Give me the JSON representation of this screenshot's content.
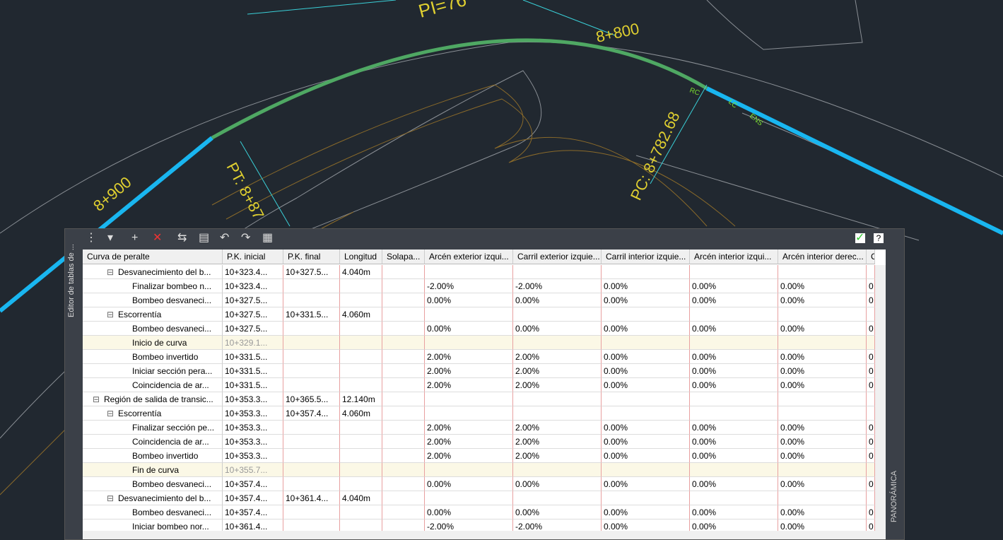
{
  "canvas": {
    "labels": [
      "PI=76",
      "8+800",
      "8+900",
      "PC: 8+782.68",
      "PT: 8+87",
      "ENS",
      "LC",
      "RC"
    ]
  },
  "panel": {
    "side_title": "Editor de tablas de ...",
    "side_label": "PANORÁMICA",
    "columns": [
      "Curva de peralte",
      "P.K. inicial",
      "P.K. final",
      "Longitud",
      "Solapa...",
      "Arcén exterior izqui...",
      "Carril exterior izquie...",
      "Carril interior izquie...",
      "Arcén interior izqui...",
      "Arcén interior derec...",
      "Carr"
    ],
    "rows": [
      {
        "level": 2,
        "label": "Desvanecimiento del b...",
        "start": "10+323.4...",
        "end": "10+327.5...",
        "length": "4.040m",
        "values": []
      },
      {
        "level": 3,
        "label": "Finalizar bombeo n...",
        "start": "10+323.4...",
        "values": [
          "-2.00%",
          "-2.00%",
          "0.00%",
          "0.00%",
          "0.00%",
          "0"
        ]
      },
      {
        "level": 3,
        "label": "Bombeo desvaneci...",
        "start": "10+327.5...",
        "values": [
          "0.00%",
          "0.00%",
          "0.00%",
          "0.00%",
          "0.00%",
          "0"
        ]
      },
      {
        "level": 2,
        "label": "Escorrentía",
        "start": "10+327.5...",
        "end": "10+331.5...",
        "length": "4.060m",
        "values": []
      },
      {
        "level": 3,
        "label": "Bombeo desvaneci...",
        "start": "10+327.5...",
        "values": [
          "0.00%",
          "0.00%",
          "0.00%",
          "0.00%",
          "0.00%",
          "0"
        ]
      },
      {
        "level": 3,
        "label": "Inicio de curva",
        "start": "10+329.1...",
        "values": [],
        "muted": true
      },
      {
        "level": 3,
        "label": "Bombeo invertido",
        "start": "10+331.5...",
        "values": [
          "2.00%",
          "2.00%",
          "0.00%",
          "0.00%",
          "0.00%",
          "0"
        ]
      },
      {
        "level": 3,
        "label": "Iniciar sección pera...",
        "start": "10+331.5...",
        "values": [
          "2.00%",
          "2.00%",
          "0.00%",
          "0.00%",
          "0.00%",
          "0"
        ]
      },
      {
        "level": 3,
        "label": "Coincidencia de ar...",
        "start": "10+331.5...",
        "values": [
          "2.00%",
          "2.00%",
          "0.00%",
          "0.00%",
          "0.00%",
          "0"
        ]
      },
      {
        "level": 1,
        "label": "Región de salida de transic...",
        "start": "10+353.3...",
        "end": "10+365.5...",
        "length": "12.140m",
        "values": []
      },
      {
        "level": 2,
        "label": "Escorrentía",
        "start": "10+353.3...",
        "end": "10+357.4...",
        "length": "4.060m",
        "values": []
      },
      {
        "level": 3,
        "label": "Finalizar sección pe...",
        "start": "10+353.3...",
        "values": [
          "2.00%",
          "2.00%",
          "0.00%",
          "0.00%",
          "0.00%",
          "0"
        ]
      },
      {
        "level": 3,
        "label": "Coincidencia de ar...",
        "start": "10+353.3...",
        "values": [
          "2.00%",
          "2.00%",
          "0.00%",
          "0.00%",
          "0.00%",
          "0"
        ]
      },
      {
        "level": 3,
        "label": "Bombeo invertido",
        "start": "10+353.3...",
        "values": [
          "2.00%",
          "2.00%",
          "0.00%",
          "0.00%",
          "0.00%",
          "0"
        ]
      },
      {
        "level": 3,
        "label": "Fin de curva",
        "start": "10+355.7...",
        "values": [],
        "muted": true
      },
      {
        "level": 3,
        "label": "Bombeo desvaneci...",
        "start": "10+357.4...",
        "values": [
          "0.00%",
          "0.00%",
          "0.00%",
          "0.00%",
          "0.00%",
          "0"
        ]
      },
      {
        "level": 2,
        "label": "Desvanecimiento del b...",
        "start": "10+357.4...",
        "end": "10+361.4...",
        "length": "4.040m",
        "values": []
      },
      {
        "level": 3,
        "label": "Bombeo desvaneci...",
        "start": "10+357.4...",
        "values": [
          "0.00%",
          "0.00%",
          "0.00%",
          "0.00%",
          "0.00%",
          "0"
        ]
      },
      {
        "level": 3,
        "label": "Iniciar bombeo nor...",
        "start": "10+361.4...",
        "values": [
          "-2.00%",
          "-2.00%",
          "0.00%",
          "0.00%",
          "0.00%",
          "0"
        ]
      }
    ]
  }
}
